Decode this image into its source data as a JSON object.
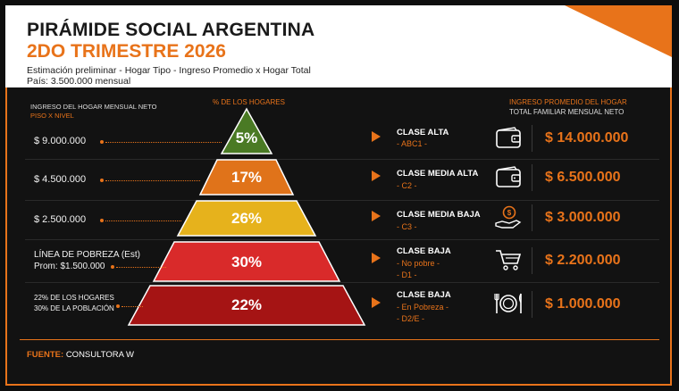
{
  "header": {
    "title": "PIRÁMIDE SOCIAL ARGENTINA",
    "subtitle": "2DO TRIMESTRE 2026",
    "line1": "Estimación preliminar - Hogar Tipo - Ingreso Promedio x Hogar Total",
    "line2": "País: 3.500.000 mensual"
  },
  "columns": {
    "left_title": "INGRESO DEL HOGAR MENSUAL NETO",
    "left_sub": "PISO X NIVEL",
    "center_title": "% DE LOS HOGARES",
    "right_title": "INGRESO PROMEDIO DEL HOGAR",
    "right_sub": "TOTAL FAMILIAR MENSUAL NETO"
  },
  "rows": [
    {
      "floor": "$ 9.000.000",
      "pct": "5%",
      "pct_value": 5,
      "class": "CLASE ALTA",
      "code": "- ABC1 -",
      "code2": "",
      "icon": "wallet-icon",
      "amount": "$ 14.000.000",
      "color": "#4a7a24"
    },
    {
      "floor": "$ 4.500.000",
      "pct": "17%",
      "pct_value": 17,
      "class": "CLASE MEDIA ALTA",
      "code": "- C2 -",
      "code2": "",
      "icon": "wallet-icon",
      "amount": "$ 6.500.000",
      "color": "#e0731a"
    },
    {
      "floor": "$ 2.500.000",
      "pct": "26%",
      "pct_value": 26,
      "class": "CLASE MEDIA BAJA",
      "code": "- C3 -",
      "code2": "",
      "icon": "coin-hand-icon",
      "amount": "$ 3.000.000",
      "color": "#e6b21c"
    },
    {
      "floor": "LÍNEA DE POBREZA (Est)",
      "floor2": "Prom: $1.500.000",
      "pct": "30%",
      "pct_value": 30,
      "class": "CLASE BAJA",
      "code": "- No pobre -",
      "code2": "- D1 -",
      "icon": "cart-icon",
      "amount": "$ 2.200.000",
      "color": "#d92a2a"
    },
    {
      "floor": "22% DE LOS HOGARES",
      "floor2": "30% DE LA POBLACIÓN",
      "pct": "22%",
      "pct_value": 22,
      "class": "CLASE BAJA",
      "code": "- En Pobreza -",
      "code2": "- D2/E -",
      "icon": "plate-cutlery-icon",
      "amount": "$ 1.000.000",
      "color": "#a51414"
    }
  ],
  "footer": {
    "label": "FUENTE:",
    "source": "CONSULTORA W"
  },
  "colors": {
    "accent": "#e8731a",
    "background": "#121212"
  }
}
